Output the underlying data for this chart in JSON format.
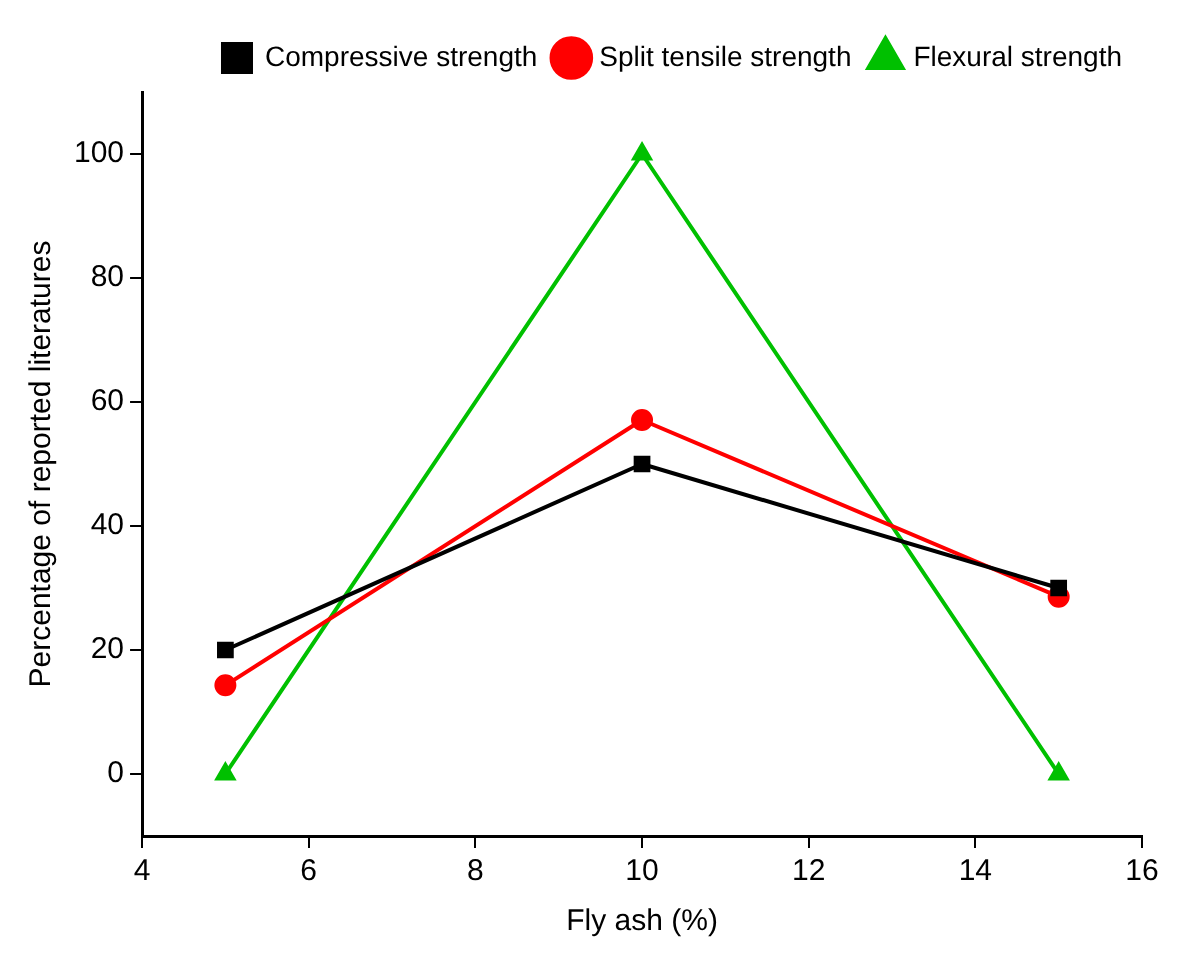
{
  "chart_data": {
    "type": "line",
    "xlabel": "Fly ash (%)",
    "ylabel": "Percentage of reported literatures",
    "x": [
      5,
      10,
      15
    ],
    "series": [
      {
        "name": "Compressive strength",
        "color": "#000000",
        "marker": "square",
        "values": [
          20,
          50,
          30
        ]
      },
      {
        "name": "Split tensile strength",
        "color": "#ff0000",
        "marker": "circle",
        "values": [
          14.3,
          57.1,
          28.6
        ]
      },
      {
        "name": "Flexural strength",
        "color": "#00c000",
        "marker": "triangle",
        "values": [
          0,
          100,
          0
        ]
      }
    ],
    "xlim": [
      4,
      16
    ],
    "xticks": [
      4,
      6,
      8,
      10,
      12,
      14,
      16
    ],
    "ylim": [
      -10,
      110
    ],
    "yticks": [
      0,
      20,
      40,
      60,
      80,
      100
    ],
    "grid": false,
    "legend": "top right",
    "line_style": "solid"
  }
}
